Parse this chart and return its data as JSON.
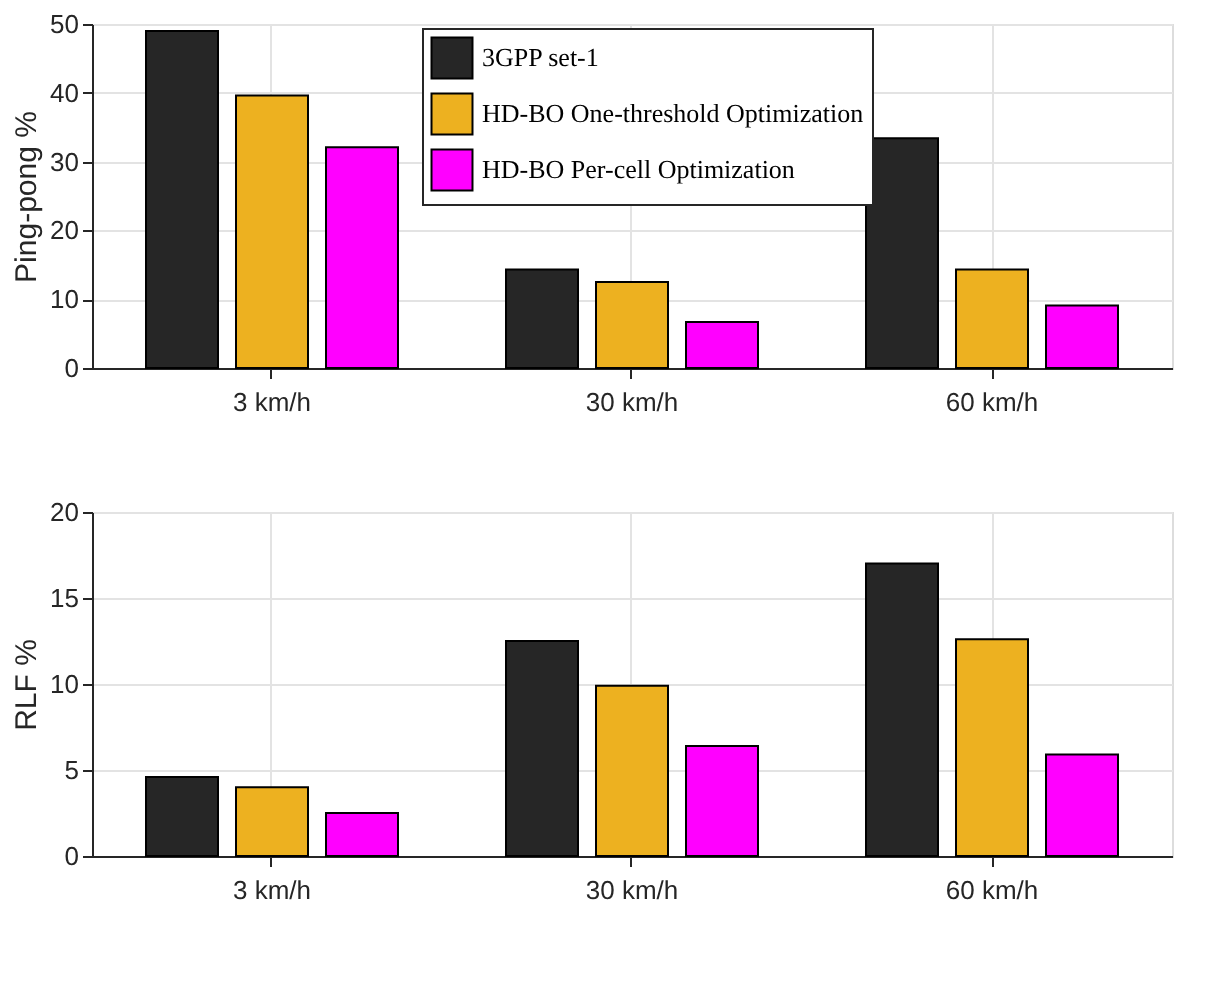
{
  "chart_data": [
    {
      "type": "bar",
      "categories": [
        "3 km/h",
        "30 km/h",
        "60 km/h"
      ],
      "ylabel": "Ping-pong %",
      "ylim": [
        0,
        50
      ],
      "yticks": [
        0,
        10,
        20,
        30,
        40,
        50
      ],
      "grid": true,
      "legend": "top",
      "series": [
        {
          "name": "3GPP set-1",
          "color": "#262626",
          "values": [
            49,
            14.3,
            33.4
          ]
        },
        {
          "name": "HD-BO One-threshold Optimization",
          "color": "#edb120",
          "values": [
            39.6,
            12.5,
            14.3
          ]
        },
        {
          "name": "HD-BO Per-cell Optimization",
          "color": "#ff00ff",
          "values": [
            32.1,
            6.7,
            9.1
          ]
        }
      ]
    },
    {
      "type": "bar",
      "categories": [
        "3 km/h",
        "30 km/h",
        "60 km/h"
      ],
      "ylabel": "RLF %",
      "ylim": [
        0,
        20
      ],
      "yticks": [
        0,
        5,
        10,
        15,
        20
      ],
      "grid": true,
      "legend": false,
      "series": [
        {
          "color": "#262626",
          "values": [
            4.6,
            12.5,
            17.0
          ]
        },
        {
          "color": "#edb120",
          "values": [
            4.0,
            9.9,
            12.6
          ]
        },
        {
          "color": "#ff00ff",
          "values": [
            2.5,
            6.4,
            5.9
          ]
        }
      ]
    }
  ]
}
